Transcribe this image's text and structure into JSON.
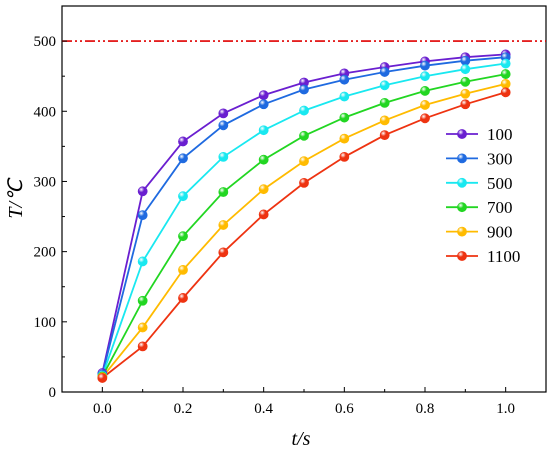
{
  "chart_data": {
    "type": "line",
    "xlabel": "t/s",
    "ylabel": "T/℃",
    "xlim": [
      -0.1,
      1.1
    ],
    "ylim": [
      0,
      550
    ],
    "x_ticks": [
      "0.0",
      "0.2",
      "0.4",
      "0.6",
      "0.8",
      "1.0"
    ],
    "y_ticks": [
      "0",
      "100",
      "200",
      "300",
      "400",
      "500"
    ],
    "grid": false,
    "legend_position": "right",
    "reference_line": {
      "y": 500,
      "color": "#e00000",
      "style": "dash-dot-dot"
    },
    "x": [
      0.0,
      0.1,
      0.2,
      0.3,
      0.4,
      0.5,
      0.6,
      0.7,
      0.8,
      0.9,
      1.0
    ],
    "series": [
      {
        "name": "100",
        "color": "#6a1fd0",
        "values": [
          27,
          286,
          357,
          397,
          423,
          441,
          454,
          463,
          471,
          477,
          481
        ]
      },
      {
        "name": "300",
        "color": "#1f6ae0",
        "values": [
          25,
          252,
          333,
          380,
          410,
          431,
          445,
          456,
          465,
          472,
          477
        ]
      },
      {
        "name": "500",
        "color": "#19e8f0",
        "values": [
          23,
          186,
          279,
          335,
          373,
          401,
          421,
          437,
          450,
          460,
          468
        ]
      },
      {
        "name": "700",
        "color": "#22d622",
        "values": [
          22,
          130,
          222,
          285,
          331,
          365,
          391,
          412,
          429,
          442,
          453
        ]
      },
      {
        "name": "900",
        "color": "#ffbb00",
        "values": [
          21,
          92,
          174,
          238,
          289,
          329,
          361,
          387,
          409,
          425,
          439
        ]
      },
      {
        "name": "1100",
        "color": "#ee3311",
        "values": [
          20,
          65,
          134,
          199,
          253,
          298,
          335,
          366,
          390,
          410,
          427
        ]
      }
    ]
  }
}
